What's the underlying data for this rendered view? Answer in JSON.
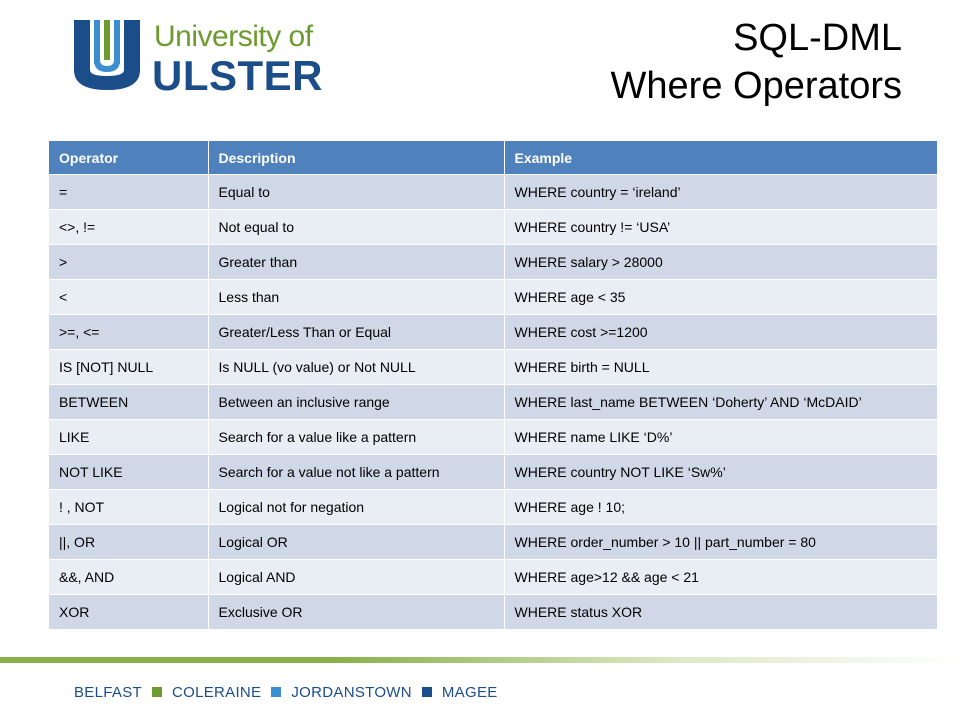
{
  "logo": {
    "line1": "University of",
    "line2": "ULSTER"
  },
  "title": {
    "line1": "SQL-DML",
    "line2": "Where Operators"
  },
  "table": {
    "headers": [
      "Operator",
      "Description",
      "Example"
    ],
    "rows": [
      [
        "=",
        "Equal to",
        "WHERE country = ‘ireland’"
      ],
      [
        "<>, !=",
        "Not equal to",
        "WHERE country != ‘USA’"
      ],
      [
        ">",
        "Greater than",
        "WHERE salary > 28000"
      ],
      [
        "<",
        "Less than",
        "WHERE age < 35"
      ],
      [
        ">=, <=",
        "Greater/Less Than or Equal",
        "WHERE cost >=1200"
      ],
      [
        "IS [NOT] NULL",
        "Is NULL (vo value) or Not NULL",
        "WHERE birth = NULL"
      ],
      [
        "BETWEEN",
        "Between an inclusive range",
        "WHERE last_name BETWEEN ‘Doherty’ AND ‘McDAID’"
      ],
      [
        "LIKE",
        "Search for a value like a pattern",
        "WHERE name LIKE ‘D%’"
      ],
      [
        "NOT LIKE",
        "Search for a value not like a pattern",
        "WHERE country NOT LIKE ‘Sw%’"
      ],
      [
        "! , NOT",
        "Logical not for negation",
        "WHERE age ! 10;"
      ],
      [
        "||, OR",
        "Logical OR",
        "WHERE order_number > 10 || part_number = 80"
      ],
      [
        "&&, AND",
        "Logical AND",
        "WHERE age>12 && age < 21"
      ],
      [
        "XOR",
        "Exclusive OR",
        "WHERE status XOR"
      ]
    ]
  },
  "footer": {
    "campuses": [
      "BELFAST",
      "COLERAINE",
      "JORDANSTOWN",
      "MAGEE"
    ],
    "separator_colors": [
      "#6d9b2f",
      "#3a8fd0",
      "#1b4d88"
    ]
  },
  "colors": {
    "header_bg": "#4f81bd",
    "row_odd": "#d0d8e8",
    "row_even": "#e9edf4",
    "logo_green": "#6d9b2f",
    "logo_blue": "#1b4d88"
  }
}
